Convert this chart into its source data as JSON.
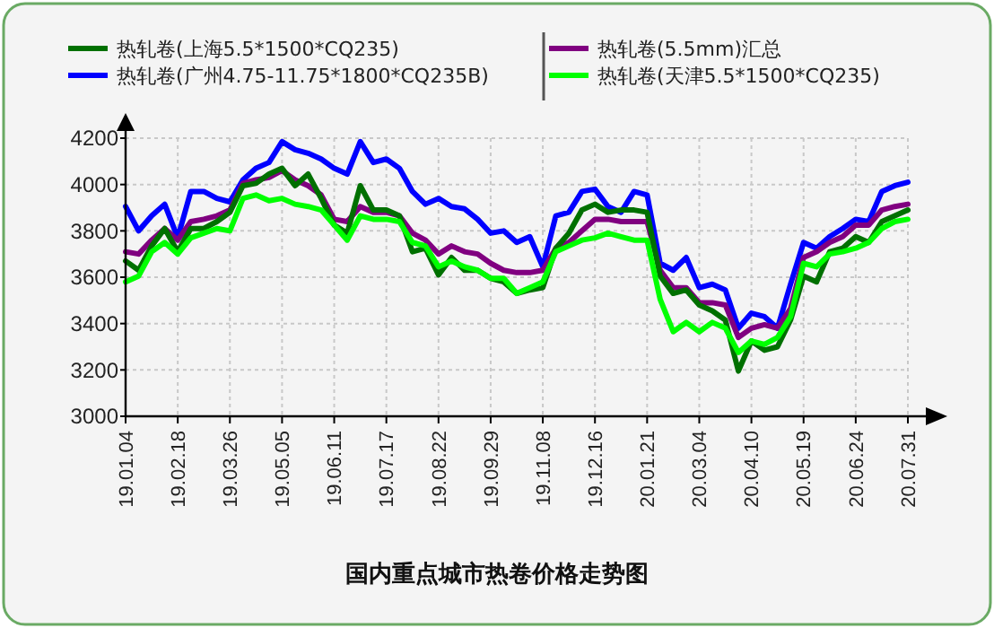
{
  "chart_data": {
    "type": "line",
    "title": "国内重点城市热卷价格走势图",
    "categories": [
      "19.01.04",
      null,
      null,
      null,
      "19.02.18",
      null,
      null,
      null,
      "19.03.26",
      null,
      null,
      null,
      "19.05.05",
      null,
      null,
      null,
      "19.06.11",
      null,
      null,
      null,
      "19.07.17",
      null,
      null,
      null,
      "19.08.22",
      null,
      null,
      null,
      "19.09.29",
      null,
      null,
      null,
      "19.11.08",
      null,
      null,
      null,
      "19.12.16",
      null,
      null,
      null,
      "20.01.21",
      null,
      null,
      null,
      "20.03.04",
      null,
      null,
      null,
      "20.04.10",
      null,
      null,
      null,
      "20.05.19",
      null,
      null,
      null,
      "20.06.24",
      null,
      null,
      null,
      "20.07.31"
    ],
    "series": [
      {
        "name": "热轧卷(上海5.5*1500*CQ235)",
        "color": "#007000",
        "values": [
          3670,
          3630,
          3735,
          3810,
          3710,
          3810,
          3810,
          3840,
          3880,
          3995,
          4005,
          4045,
          4070,
          3995,
          4045,
          3940,
          3825,
          3790,
          3995,
          3890,
          3890,
          3865,
          3710,
          3725,
          3610,
          3685,
          3630,
          3630,
          3595,
          3580,
          3530,
          3545,
          3555,
          3725,
          3790,
          3890,
          3915,
          3880,
          3890,
          3890,
          3880,
          3605,
          3530,
          3545,
          3480,
          3455,
          3415,
          3195,
          3325,
          3285,
          3300,
          3415,
          3605,
          3580,
          3710,
          3725,
          3775,
          3750,
          3840,
          3865,
          3890
        ]
      },
      {
        "name": "热轧卷(广州4.75-11.75*1800*CQ235B)",
        "color": "#0000ff",
        "values": [
          3905,
          3800,
          3865,
          3915,
          3770,
          3970,
          3970,
          3940,
          3925,
          4020,
          4070,
          4095,
          4185,
          4150,
          4135,
          4110,
          4070,
          4045,
          4185,
          4095,
          4110,
          4070,
          3970,
          3915,
          3940,
          3905,
          3895,
          3850,
          3790,
          3800,
          3750,
          3775,
          3645,
          3865,
          3880,
          3970,
          3980,
          3905,
          3880,
          3970,
          3955,
          3660,
          3630,
          3685,
          3555,
          3570,
          3545,
          3380,
          3445,
          3430,
          3380,
          3570,
          3750,
          3725,
          3775,
          3810,
          3850,
          3840,
          3970,
          3995,
          4010
        ]
      },
      {
        "name": "热轧卷(5.5mm)汇总",
        "color": "#800080",
        "values": [
          3710,
          3700,
          3760,
          3810,
          3760,
          3840,
          3850,
          3865,
          3890,
          4005,
          4020,
          4030,
          4060,
          4020,
          3995,
          3955,
          3850,
          3840,
          3905,
          3880,
          3880,
          3865,
          3790,
          3760,
          3700,
          3735,
          3710,
          3700,
          3660,
          3630,
          3620,
          3620,
          3630,
          3725,
          3750,
          3800,
          3850,
          3850,
          3840,
          3840,
          3840,
          3630,
          3555,
          3555,
          3490,
          3490,
          3480,
          3340,
          3380,
          3395,
          3380,
          3465,
          3685,
          3710,
          3750,
          3775,
          3825,
          3825,
          3890,
          3905,
          3915
        ]
      },
      {
        "name": "热轧卷(天津5.5*1500*CQ235)",
        "color": "#00ff00",
        "values": [
          3580,
          3605,
          3710,
          3750,
          3700,
          3770,
          3790,
          3810,
          3800,
          3940,
          3955,
          3930,
          3940,
          3915,
          3905,
          3890,
          3825,
          3760,
          3865,
          3850,
          3850,
          3840,
          3750,
          3735,
          3645,
          3670,
          3645,
          3630,
          3595,
          3595,
          3530,
          3555,
          3580,
          3710,
          3735,
          3760,
          3770,
          3790,
          3775,
          3760,
          3760,
          3505,
          3365,
          3405,
          3365,
          3405,
          3380,
          3275,
          3325,
          3310,
          3340,
          3430,
          3660,
          3645,
          3700,
          3710,
          3725,
          3750,
          3810,
          3840,
          3850
        ]
      }
    ],
    "ylim": [
      3000,
      4200
    ],
    "yticks": [
      3000,
      3200,
      3400,
      3600,
      3800,
      4000,
      4200
    ],
    "grid": true,
    "legend": "top",
    "line_style": "solid",
    "marker": "none"
  }
}
